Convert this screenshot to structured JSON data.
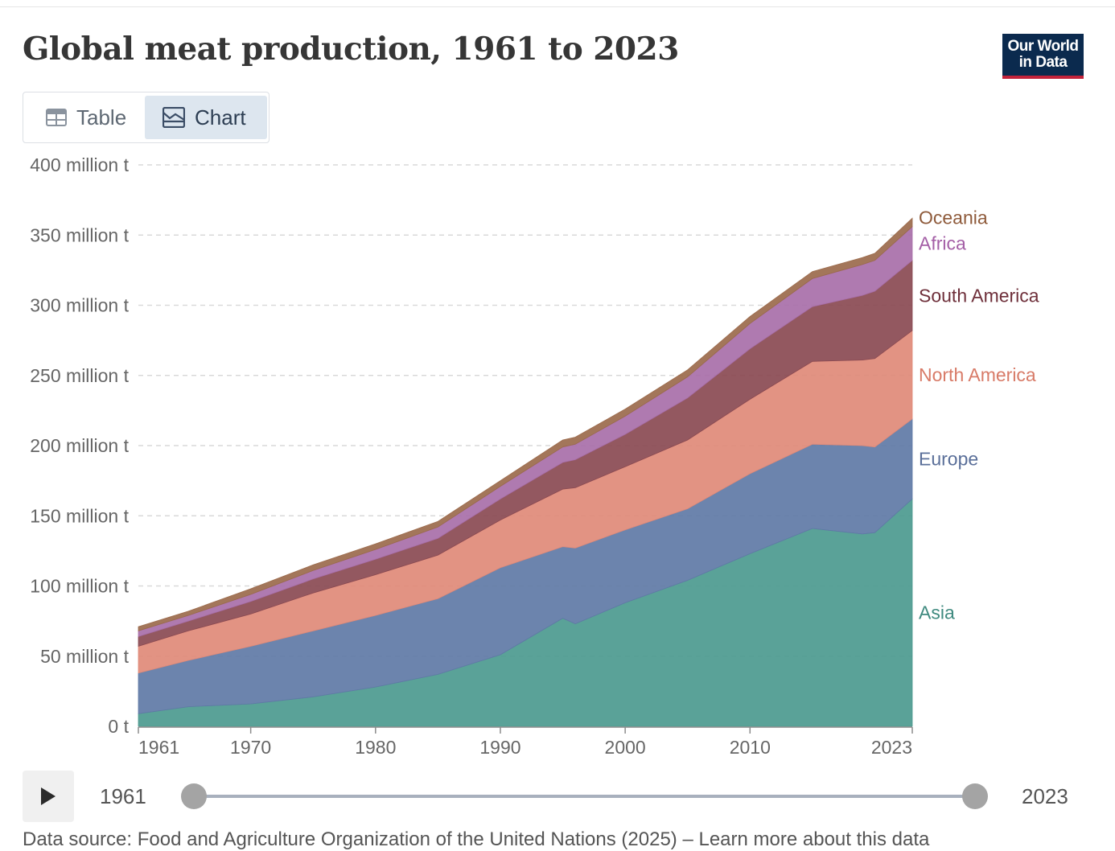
{
  "title": "Global meat production, 1961 to 2023",
  "logo": {
    "line1": "Our World",
    "line2": "in Data"
  },
  "tabs": [
    {
      "label": "Table",
      "icon": "table-icon"
    },
    {
      "label": "Chart",
      "icon": "chart-icon",
      "active": true
    }
  ],
  "timeline": {
    "start_label": "1961",
    "end_label": "2023",
    "start_value": 1961,
    "end_value": 2023
  },
  "footer": {
    "text": "Data source: Food and Agriculture Organization of the United Nations (2025) – Learn more about this data"
  },
  "colors": {
    "Asia": "#4c9a8f",
    "Europe": "#6079a6",
    "North America": "#e08a78",
    "South America": "#8a4a52",
    "Africa": "#a86fa9",
    "Oceania": "#9b6a4c",
    "label_Asia": "#3f8a7f",
    "label_Europe": "#5a6f99",
    "label_North America": "#d87b68",
    "label_South America": "#6e2f3a",
    "label_Africa": "#a45fa6",
    "label_Oceania": "#8e5a3a"
  },
  "chart_data": {
    "type": "area",
    "stacked": true,
    "unit": "t",
    "xlim": [
      1961,
      2023
    ],
    "ylim": [
      0,
      400000000
    ],
    "y_ticks": [
      {
        "value": 0,
        "label": "0 t"
      },
      {
        "value": 50000000,
        "label": "50 million t"
      },
      {
        "value": 100000000,
        "label": "100 million t"
      },
      {
        "value": 150000000,
        "label": "150 million t"
      },
      {
        "value": 200000000,
        "label": "200 million t"
      },
      {
        "value": 250000000,
        "label": "250 million t"
      },
      {
        "value": 300000000,
        "label": "300 million t"
      },
      {
        "value": 350000000,
        "label": "350 million t"
      },
      {
        "value": 400000000,
        "label": "400 million t"
      }
    ],
    "x_ticks": [
      {
        "value": 1961,
        "label": "1961"
      },
      {
        "value": 1970,
        "label": "1970"
      },
      {
        "value": 1980,
        "label": "1980"
      },
      {
        "value": 1990,
        "label": "1990"
      },
      {
        "value": 2000,
        "label": "2000"
      },
      {
        "value": 2010,
        "label": "2010"
      },
      {
        "value": 2023,
        "label": "2023"
      }
    ],
    "grid": "horizontal dashed",
    "legend": "inline labels at right end",
    "x": [
      1961,
      1965,
      1970,
      1975,
      1980,
      1985,
      1990,
      1995,
      1996,
      2000,
      2005,
      2010,
      2015,
      2019,
      2020,
      2023
    ],
    "series": [
      {
        "name": "Asia",
        "values": [
          9,
          14,
          16,
          21,
          28,
          37,
          51,
          77,
          73,
          88,
          104,
          123,
          141,
          137,
          138,
          162
        ]
      },
      {
        "name": "Europe",
        "values": [
          29,
          33,
          41,
          47,
          51,
          54,
          62,
          51,
          54,
          52,
          51,
          57,
          60,
          63,
          61,
          57
        ]
      },
      {
        "name": "North America",
        "values": [
          19,
          21,
          23,
          27,
          29,
          31,
          34,
          41,
          43,
          45,
          49,
          53,
          59,
          61,
          63,
          63
        ]
      },
      {
        "name": "South America",
        "values": [
          7,
          7,
          9,
          10,
          11,
          12,
          15,
          19,
          20,
          23,
          30,
          36,
          39,
          46,
          48,
          50
        ]
      },
      {
        "name": "Africa",
        "values": [
          4,
          4,
          5,
          6,
          7,
          8,
          9,
          11,
          11,
          13,
          15,
          18,
          20,
          22,
          22,
          24
        ]
      },
      {
        "name": "Oceania",
        "values": [
          3,
          3,
          4,
          4,
          4,
          4,
          4,
          5,
          5,
          5,
          5,
          5,
          5,
          5,
          5,
          6
        ]
      }
    ],
    "values_scale": "million t"
  }
}
